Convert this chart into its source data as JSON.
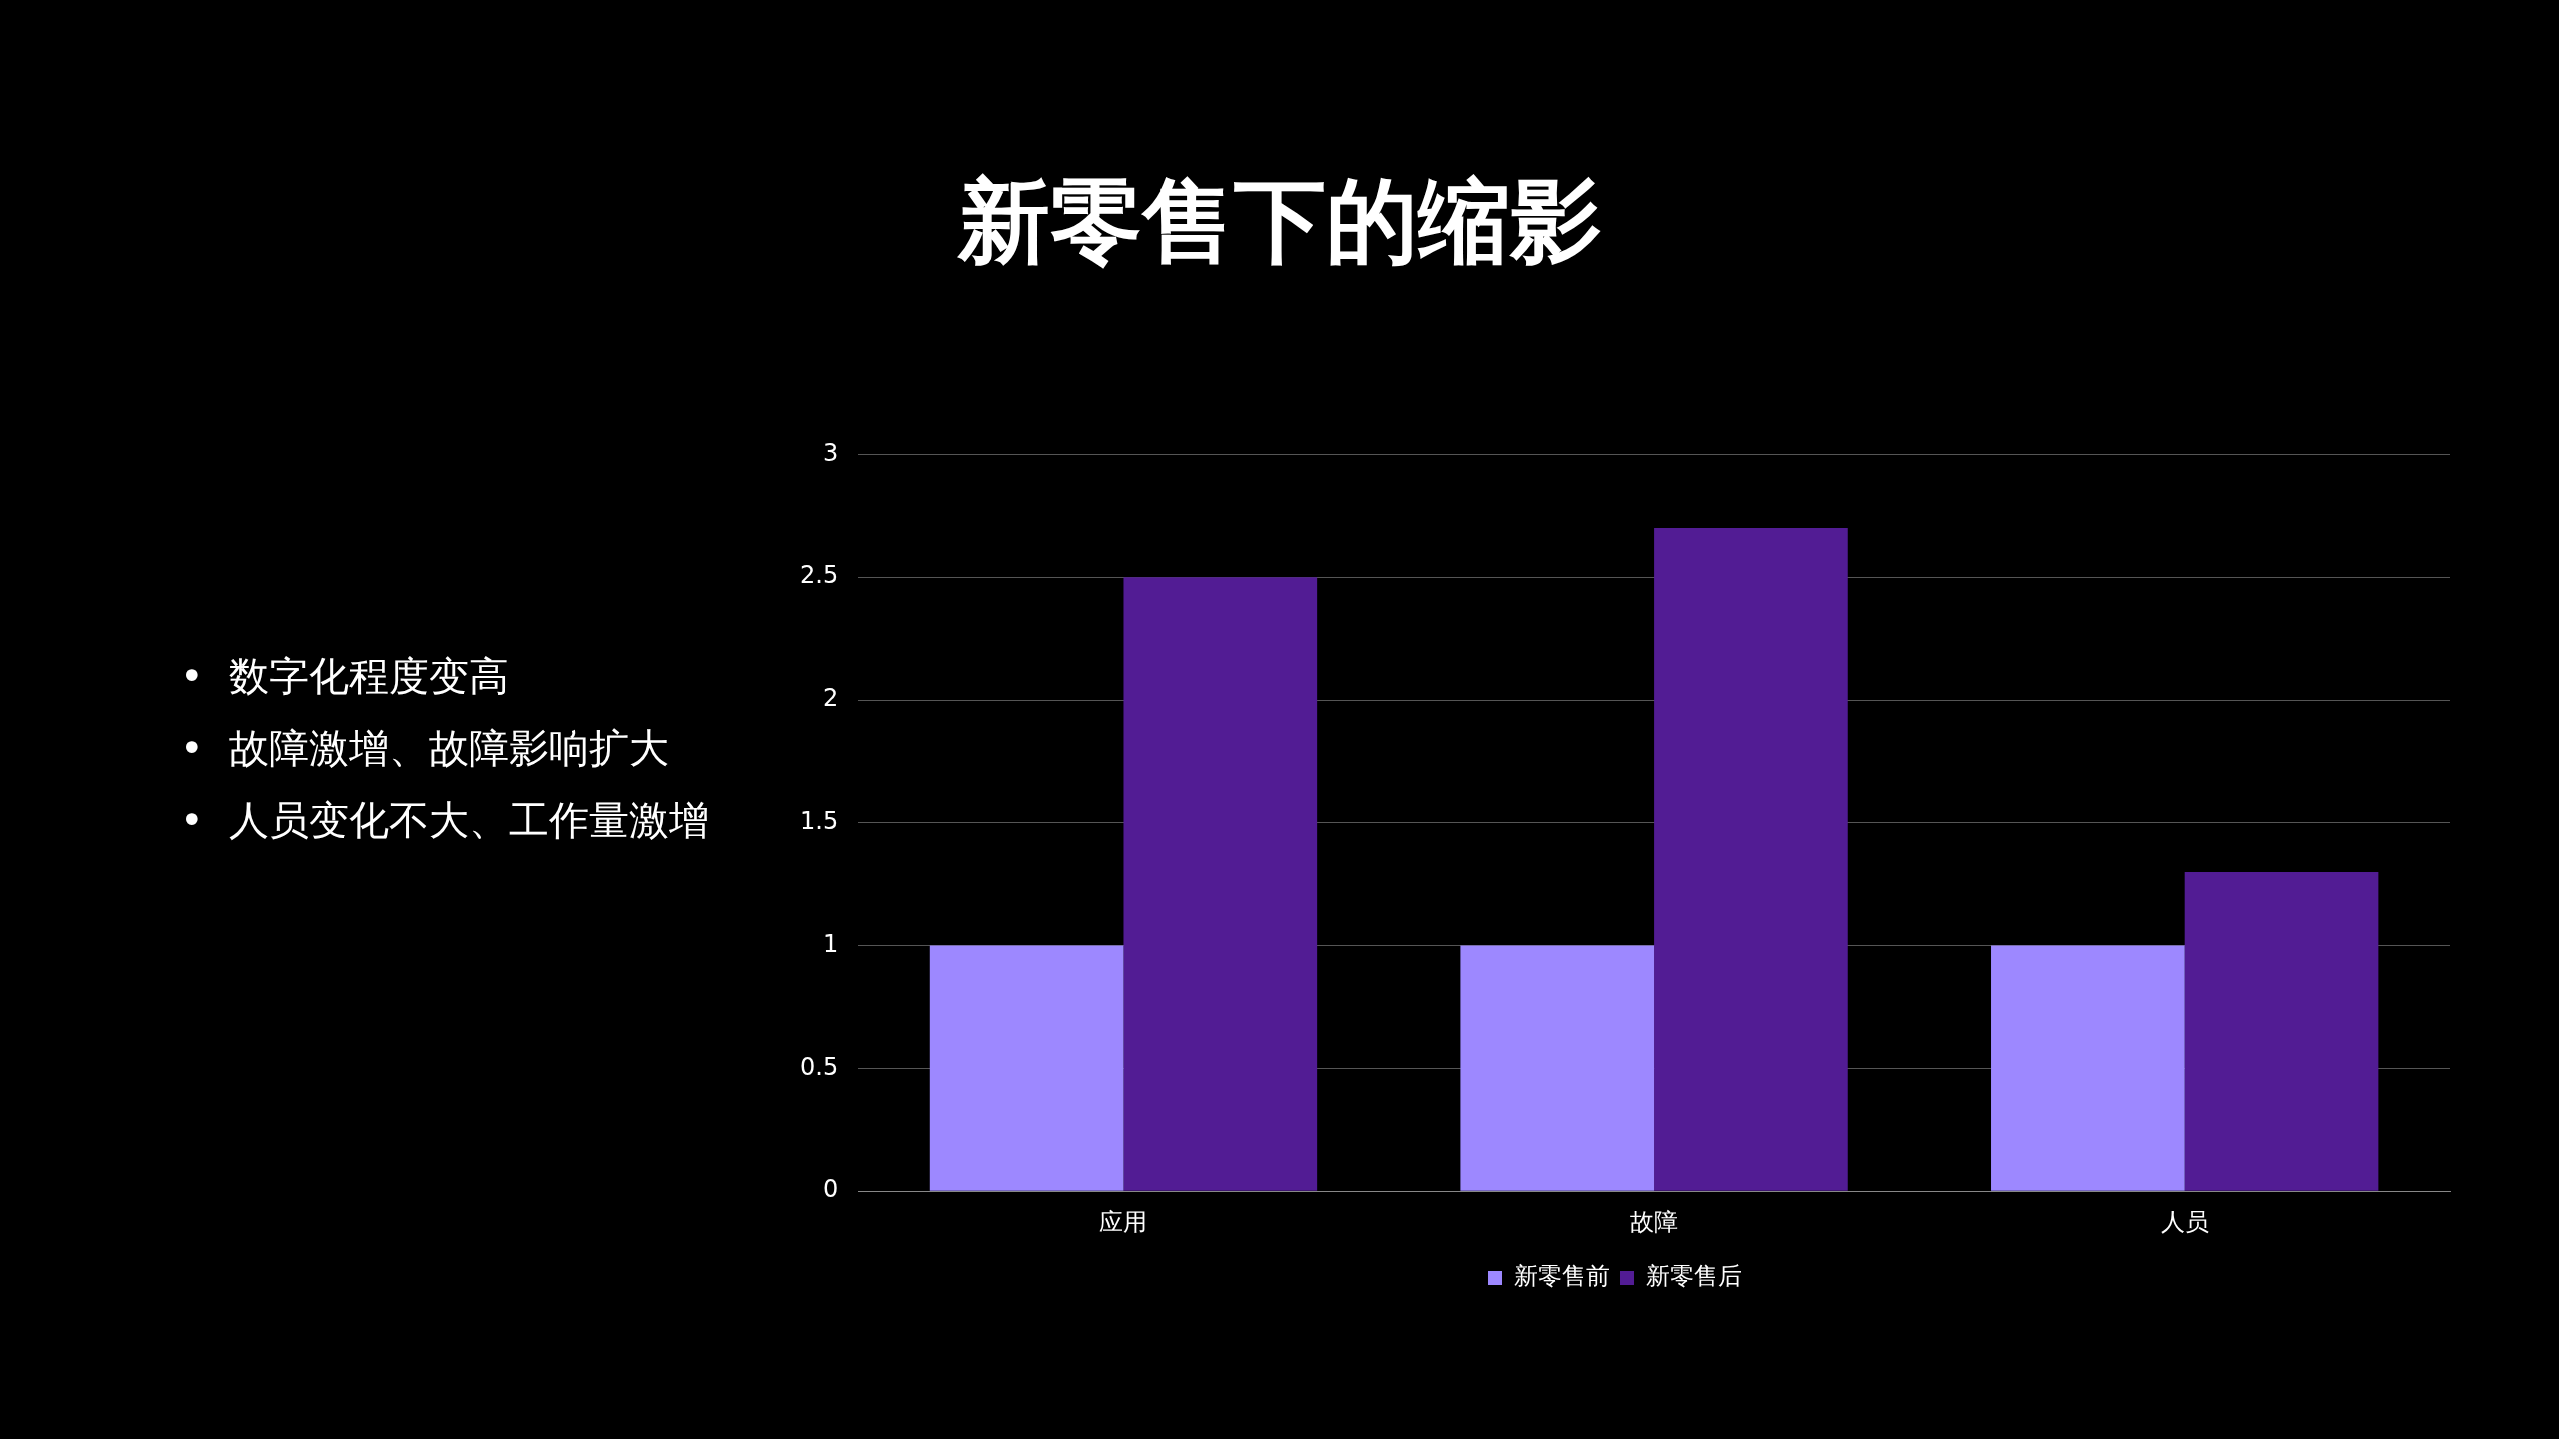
{
  "chart_data": {
    "type": "bar",
    "title": "新零售下的缩影",
    "categories": [
      "应用",
      "故障",
      "人员"
    ],
    "series": [
      {
        "name": "新零售前",
        "color": "#9d88ff",
        "values": [
          1,
          1,
          1
        ]
      },
      {
        "name": "新零售后",
        "color": "#521c94",
        "values": [
          2.5,
          2.7,
          1.3
        ]
      }
    ],
    "ylim": [
      0,
      3
    ],
    "yticks": [
      0,
      0.5,
      1,
      1.5,
      2,
      2.5,
      3
    ],
    "grid": "y",
    "legend": "bottom",
    "annotations": [
      "•  数字化程度变高",
      "•  故障激增、故障影响扩大",
      "•  人员变化不大、工作量激增"
    ]
  }
}
